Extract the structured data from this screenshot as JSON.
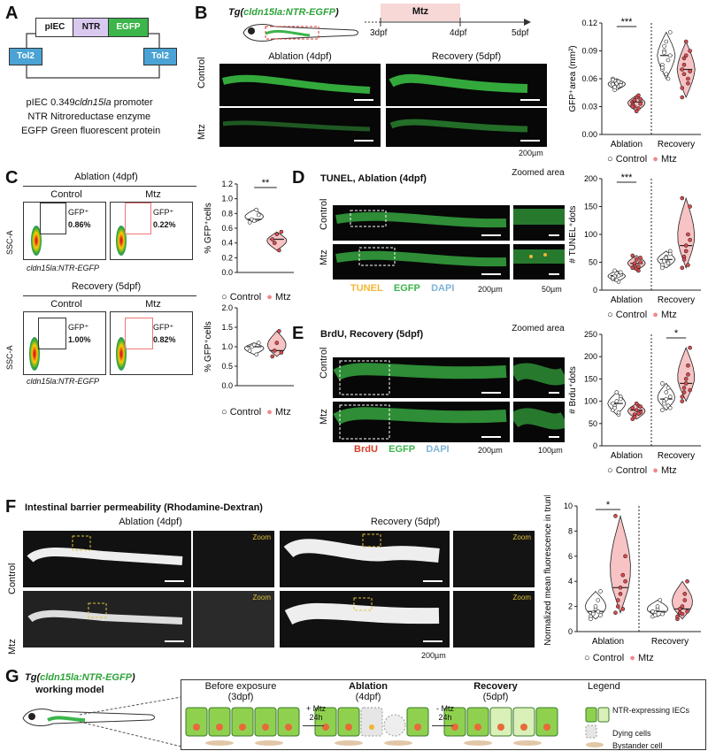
{
  "panels": [
    "A",
    "B",
    "C",
    "D",
    "E",
    "F",
    "G"
  ],
  "A": {
    "construct": {
      "left": "pIEC",
      "mid": "NTR",
      "right": "EGFP",
      "tol_left": "Tol2",
      "tol_right": "Tol2"
    },
    "colors": {
      "ntr": "#d9c9ef",
      "egfp": "#3cb54a",
      "tol": "#4aa3d4"
    },
    "legend": [
      {
        "abbr": "pIEC",
        "desc_prefix": "0.349",
        "desc_italic": "cldn15la",
        "desc_suffix": " promoter"
      },
      {
        "abbr": "NTR",
        "desc": "Nitroreductase enzyme"
      },
      {
        "abbr": "EGFP",
        "desc": "Green fluorescent protein"
      }
    ]
  },
  "B": {
    "line_prefix": "Tg(",
    "line_gene": "cldn15la:NTR-EGFP",
    "line_suffix": ")",
    "timeline": {
      "treatment": "Mtz",
      "t0": "3dpf",
      "t1": "4dpf",
      "t2": "5dpf"
    },
    "cols": [
      "Ablation (4dpf)",
      "Recovery (5dpf)"
    ],
    "rows": [
      "Control",
      "Mtz"
    ],
    "scale": "200µm"
  },
  "C": {
    "top_title": "Ablation (4dpf)",
    "bottom_title": "Recovery (5dpf)",
    "cols": [
      "Control",
      "Mtz"
    ],
    "ylabel": "SSC-A",
    "xlabel": "cldn15la:NTR-EGFP",
    "gate_label": "GFP⁺",
    "top_pct": [
      "0.86%",
      "0.22%"
    ],
    "bottom_pct": [
      "1.00%",
      "0.82%"
    ]
  },
  "D": {
    "title": "TUNEL, Ablation (4dpf)",
    "zoom": "Zoomed area",
    "rows": [
      "Control",
      "Mtz"
    ],
    "stains": [
      "TUNEL",
      "EGFP",
      "DAPI"
    ],
    "stain_colors": [
      "#f2b632",
      "#3cb54a",
      "#7fb3d8"
    ],
    "scale1": "200µm",
    "scale2": "50µm"
  },
  "E": {
    "title": "BrdU, Recovery (5dpf)",
    "zoom": "Zoomed area",
    "rows": [
      "Control",
      "Mtz"
    ],
    "stains": [
      "BrdU",
      "EGFP",
      "DAPI"
    ],
    "stain_colors": [
      "#d8402a",
      "#3cb54a",
      "#7fb3d8"
    ],
    "scale1": "200µm",
    "scale2": "100µm"
  },
  "F": {
    "title": "Intestinal barrier permeability (Rhodamine-Dextran)",
    "cols": [
      "Ablation (4dpf)",
      "Recovery (5dpf)"
    ],
    "rows": [
      "Control",
      "Mtz"
    ],
    "zoom": "Zoom",
    "scale": "200µm"
  },
  "G": {
    "title_prefix": "Tg(",
    "title_gene": "cldn15la:NTR-EGFP",
    "title_suffix": ")",
    "subtitle": "working model",
    "stages": [
      {
        "title": "Before exposure",
        "sub": "(3dpf)"
      },
      {
        "title": "Ablation",
        "sub": "(4dpf)"
      },
      {
        "title": "Recovery",
        "sub": "(5dpf)"
      }
    ],
    "arrow1": [
      "+ Mtz",
      "24h"
    ],
    "arrow2": [
      "- Mtz",
      "24h"
    ],
    "legend_title": "Legend",
    "legend": [
      "NTR-expressing IECs",
      "Dying cells",
      "Bystander cell"
    ]
  },
  "legend_common": {
    "control": "Control",
    "mtz": "Mtz",
    "mtz_color": "#f0898b"
  },
  "chart_data": [
    {
      "id": "B-chart",
      "type": "violin",
      "ylabel": "GFP⁺area (mm²)",
      "ylim": [
        0,
        0.12
      ],
      "yticks": [
        "0.00",
        "0.03",
        "0.06",
        "0.09",
        "0.12"
      ],
      "groups": [
        "Ablation",
        "Recovery"
      ],
      "series": [
        {
          "name": "Control",
          "values": [
            0.054,
            0.058,
            0.05,
            0.052,
            0.056,
            0.06,
            0.048,
            0.055,
            0.057,
            0.053,
            0.059,
            0.051
          ]
        },
        {
          "name": "Mtz",
          "values": [
            0.035,
            0.03,
            0.04,
            0.028,
            0.038,
            0.032,
            0.036,
            0.025,
            0.042,
            0.033,
            0.03,
            0.037
          ]
        },
        {
          "name": "Control",
          "values": [
            0.075,
            0.09,
            0.1,
            0.06,
            0.085,
            0.07,
            0.095,
            0.065,
            0.08,
            0.11,
            0.072,
            0.088
          ]
        },
        {
          "name": "Mtz",
          "values": [
            0.07,
            0.065,
            0.085,
            0.06,
            0.09,
            0.05,
            0.075,
            0.1,
            0.055,
            0.068,
            0.04,
            0.082
          ]
        }
      ],
      "sig": [
        {
          "group": "Ablation",
          "label": "***"
        }
      ]
    },
    {
      "id": "C-top",
      "type": "violin",
      "ylabel": "% GFP⁺cells",
      "ylim": [
        0,
        1.2
      ],
      "yticks": [
        "0.0",
        "0.2",
        "0.4",
        "0.6",
        "0.8",
        "1.0",
        "1.2"
      ],
      "groups": [
        ""
      ],
      "series": [
        {
          "name": "Control",
          "values": [
            0.68,
            0.72,
            0.7,
            0.85,
            0.78
          ]
        },
        {
          "name": "Mtz",
          "values": [
            0.45,
            0.4,
            0.52,
            0.3,
            0.55
          ]
        }
      ],
      "sig": [
        {
          "group": "",
          "label": "**"
        }
      ]
    },
    {
      "id": "C-bottom",
      "type": "violin",
      "ylabel": "% GFP⁺cells",
      "ylim": [
        0,
        2.0
      ],
      "yticks": [
        "0.0",
        "0.5",
        "1.0",
        "1.5",
        "2.0"
      ],
      "groups": [
        ""
      ],
      "series": [
        {
          "name": "Control",
          "values": [
            0.9,
            1.0,
            1.05,
            0.8,
            1.1
          ]
        },
        {
          "name": "Mtz",
          "values": [
            0.75,
            0.9,
            1.1,
            1.4,
            0.85
          ]
        }
      ],
      "sig": []
    },
    {
      "id": "D-chart",
      "type": "violin",
      "ylabel": "# TUNEL⁺dots",
      "ylim": [
        0,
        200
      ],
      "yticks": [
        "0",
        "50",
        "100",
        "150",
        "200"
      ],
      "groups": [
        "Ablation",
        "Recovery"
      ],
      "series": [
        {
          "name": "Control",
          "values": [
            20,
            25,
            30,
            15,
            28,
            22,
            35,
            18,
            26,
            32
          ]
        },
        {
          "name": "Mtz",
          "values": [
            40,
            45,
            55,
            35,
            50,
            62,
            48,
            38,
            42,
            58
          ]
        },
        {
          "name": "Control",
          "values": [
            45,
            55,
            60,
            50,
            70,
            40,
            52,
            58,
            48,
            65
          ]
        },
        {
          "name": "Mtz",
          "values": [
            40,
            60,
            80,
            100,
            150,
            165,
            55,
            70,
            45,
            90
          ]
        }
      ],
      "sig": [
        {
          "group": "Ablation",
          "label": "***"
        }
      ]
    },
    {
      "id": "E-chart",
      "type": "violin",
      "ylabel": "# Brdu⁺dots",
      "ylim": [
        0,
        250
      ],
      "yticks": [
        "0",
        "50",
        "100",
        "150",
        "200",
        "250"
      ],
      "groups": [
        "Ablation",
        "Recovery"
      ],
      "series": [
        {
          "name": "Control",
          "values": [
            80,
            90,
            100,
            70,
            110,
            95,
            85,
            120,
            75,
            105
          ]
        },
        {
          "name": "Mtz",
          "values": [
            60,
            70,
            80,
            90,
            75,
            85,
            65,
            95,
            72,
            88
          ]
        },
        {
          "name": "Control",
          "values": [
            80,
            100,
            120,
            90,
            110,
            140,
            95,
            105,
            130,
            85
          ]
        },
        {
          "name": "Mtz",
          "values": [
            100,
            120,
            150,
            180,
            220,
            110,
            130,
            140,
            160,
            125
          ]
        }
      ],
      "sig": [
        {
          "group": "Recovery",
          "label": "*"
        }
      ]
    },
    {
      "id": "F-chart",
      "type": "violin",
      "ylabel": "Normalized mean fluorescence in trunk",
      "ylim": [
        0,
        10
      ],
      "yticks": [
        "0",
        "2",
        "4",
        "6",
        "8",
        "10"
      ],
      "groups": [
        "Ablation",
        "Recovery"
      ],
      "series": [
        {
          "name": "Control",
          "values": [
            1.2,
            1.5,
            1.8,
            2.5,
            3.2,
            1.0,
            1.4,
            2.0,
            1.6,
            1.3
          ]
        },
        {
          "name": "Mtz",
          "values": [
            1.5,
            2.5,
            3.5,
            4.5,
            6.0,
            9.2,
            2.0,
            3.0,
            1.8,
            4.0
          ]
        },
        {
          "name": "Control",
          "values": [
            1.2,
            1.5,
            1.8,
            2.5,
            1.4,
            1.6,
            1.3,
            2.0
          ]
        },
        {
          "name": "Mtz",
          "values": [
            1.0,
            1.5,
            2.0,
            3.0,
            4.0,
            1.2,
            1.8,
            1.4,
            2.5,
            1.6
          ]
        }
      ],
      "sig": [
        {
          "group": "Ablation",
          "label": "*"
        }
      ]
    }
  ]
}
